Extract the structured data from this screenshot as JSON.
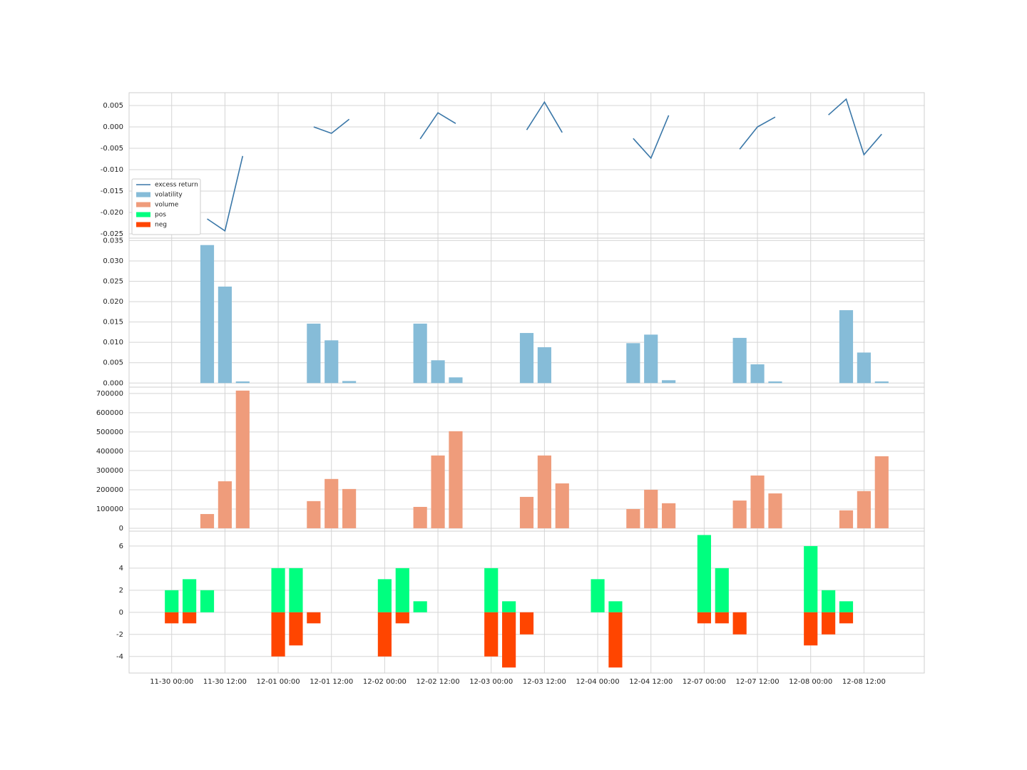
{
  "chart_data": [
    {
      "type": "line",
      "legend": "center left",
      "x": [
        2,
        3,
        4,
        null,
        8,
        9,
        10,
        null,
        14,
        15,
        16,
        null,
        20,
        21,
        22,
        null,
        26,
        27,
        28,
        null,
        32,
        33,
        34,
        null,
        37,
        38,
        39,
        40
      ],
      "series": [
        {
          "name": "excess return",
          "color": "#3a77a8",
          "values": [
            -0.0215,
            -0.0243,
            -0.0068,
            null,
            0.0,
            -0.0015,
            0.0018,
            null,
            -0.0028,
            0.0033,
            0.0008,
            null,
            -0.0007,
            0.0058,
            -0.0013,
            null,
            -0.0027,
            -0.0073,
            0.0027,
            null,
            -0.0052,
            0.0,
            0.0023,
            null,
            0.0028,
            0.0065,
            -0.0065,
            -0.0017
          ]
        }
      ],
      "ylim": [
        -0.026,
        0.008
      ],
      "yticks": [
        -0.025,
        {
          "value": -0.02,
          "label": "-0.020"
        },
        -0.015,
        {
          "value": -0.01,
          "label": "-0.010"
        },
        -0.005,
        {
          "value": 0,
          "label": "0.000"
        },
        0.005
      ],
      "grid": true
    },
    {
      "type": "bar",
      "x": [
        2,
        3,
        4,
        8,
        9,
        10,
        14,
        15,
        16,
        20,
        21,
        22,
        26,
        27,
        28,
        32,
        33,
        34,
        38,
        39,
        40
      ],
      "series": [
        {
          "name": "volatility",
          "color": "#86bcd8",
          "values": [
            0.0339,
            0.0237,
            0.0004,
            0.0146,
            0.0105,
            0.0005,
            0.0146,
            0.0056,
            0.0014,
            0.0123,
            0.0088,
            0,
            0.0098,
            0.0119,
            0.0007,
            0.0111,
            0.0046,
            0.0004,
            0.0179,
            0.0075,
            0.0004
          ]
        }
      ],
      "ylim": [
        -0.001,
        0.0356
      ],
      "yticks": [
        {
          "value": 0,
          "label": "0.000"
        },
        0.005,
        {
          "value": 0.01,
          "label": "0.010"
        },
        0.015,
        {
          "value": 0.02,
          "label": "0.020"
        },
        0.025,
        {
          "value": 0.03,
          "label": "0.030"
        },
        0.035
      ],
      "grid": true
    },
    {
      "type": "bar",
      "x": [
        2,
        3,
        4,
        8,
        9,
        10,
        14,
        15,
        16,
        20,
        21,
        22,
        26,
        27,
        28,
        32,
        33,
        34,
        38,
        39,
        40
      ],
      "series": [
        {
          "name": "volume",
          "color": "#ef9c7b",
          "values": [
            74000,
            244000,
            715000,
            141000,
            256000,
            204000,
            111000,
            378000,
            504000,
            163000,
            378000,
            233000,
            100000,
            200000,
            130000,
            144000,
            274000,
            181000,
            93000,
            193000,
            374000
          ]
        }
      ],
      "ylim": [
        -15000,
        733000
      ],
      "yticks": [
        0,
        100000,
        200000,
        300000,
        400000,
        500000,
        600000,
        700000
      ],
      "grid": true
    },
    {
      "type": "bar",
      "x": [
        0,
        1,
        2,
        6,
        7,
        8,
        12,
        13,
        14,
        18,
        19,
        20,
        24,
        25,
        26,
        30,
        31,
        32,
        36,
        37,
        38
      ],
      "series": [
        {
          "name": "pos",
          "color": "#00ff7f",
          "values": [
            2,
            3,
            2,
            4,
            4,
            0,
            3,
            4,
            1,
            4,
            1,
            0,
            3,
            1,
            0,
            7,
            4,
            0,
            6,
            2,
            1
          ]
        },
        {
          "name": "neg",
          "color": "#ff4500",
          "values": [
            -1,
            -1,
            0,
            -4,
            -3,
            -1,
            -4,
            -1,
            0,
            -4,
            -5,
            -2,
            0,
            -5,
            0,
            -1,
            -1,
            -2,
            -3,
            -2,
            -1
          ]
        }
      ],
      "ylim": [
        -5.5,
        7.35
      ],
      "yticks": [
        -4,
        -2,
        0,
        2,
        4,
        6
      ],
      "xlim": [
        -2.4,
        42.4
      ],
      "xticks": [
        {
          "value": 0,
          "label": "11-30 00:00"
        },
        {
          "value": 3,
          "label": "11-30 12:00"
        },
        {
          "value": 6,
          "label": "12-01 00:00"
        },
        {
          "value": 9,
          "label": "12-01 12:00"
        },
        {
          "value": 12,
          "label": "12-02 00:00"
        },
        {
          "value": 15,
          "label": "12-02 12:00"
        },
        {
          "value": 18,
          "label": "12-03 00:00"
        },
        {
          "value": 21,
          "label": "12-03 12:00"
        },
        {
          "value": 24,
          "label": "12-04 00:00"
        },
        {
          "value": 27,
          "label": "12-04 12:00"
        },
        {
          "value": 30,
          "label": "12-07 00:00"
        },
        {
          "value": 33,
          "label": "12-07 12:00"
        },
        {
          "value": 36,
          "label": "12-08 00:00"
        },
        {
          "value": 39,
          "label": "12-08 12:00"
        }
      ],
      "grid": true
    }
  ]
}
